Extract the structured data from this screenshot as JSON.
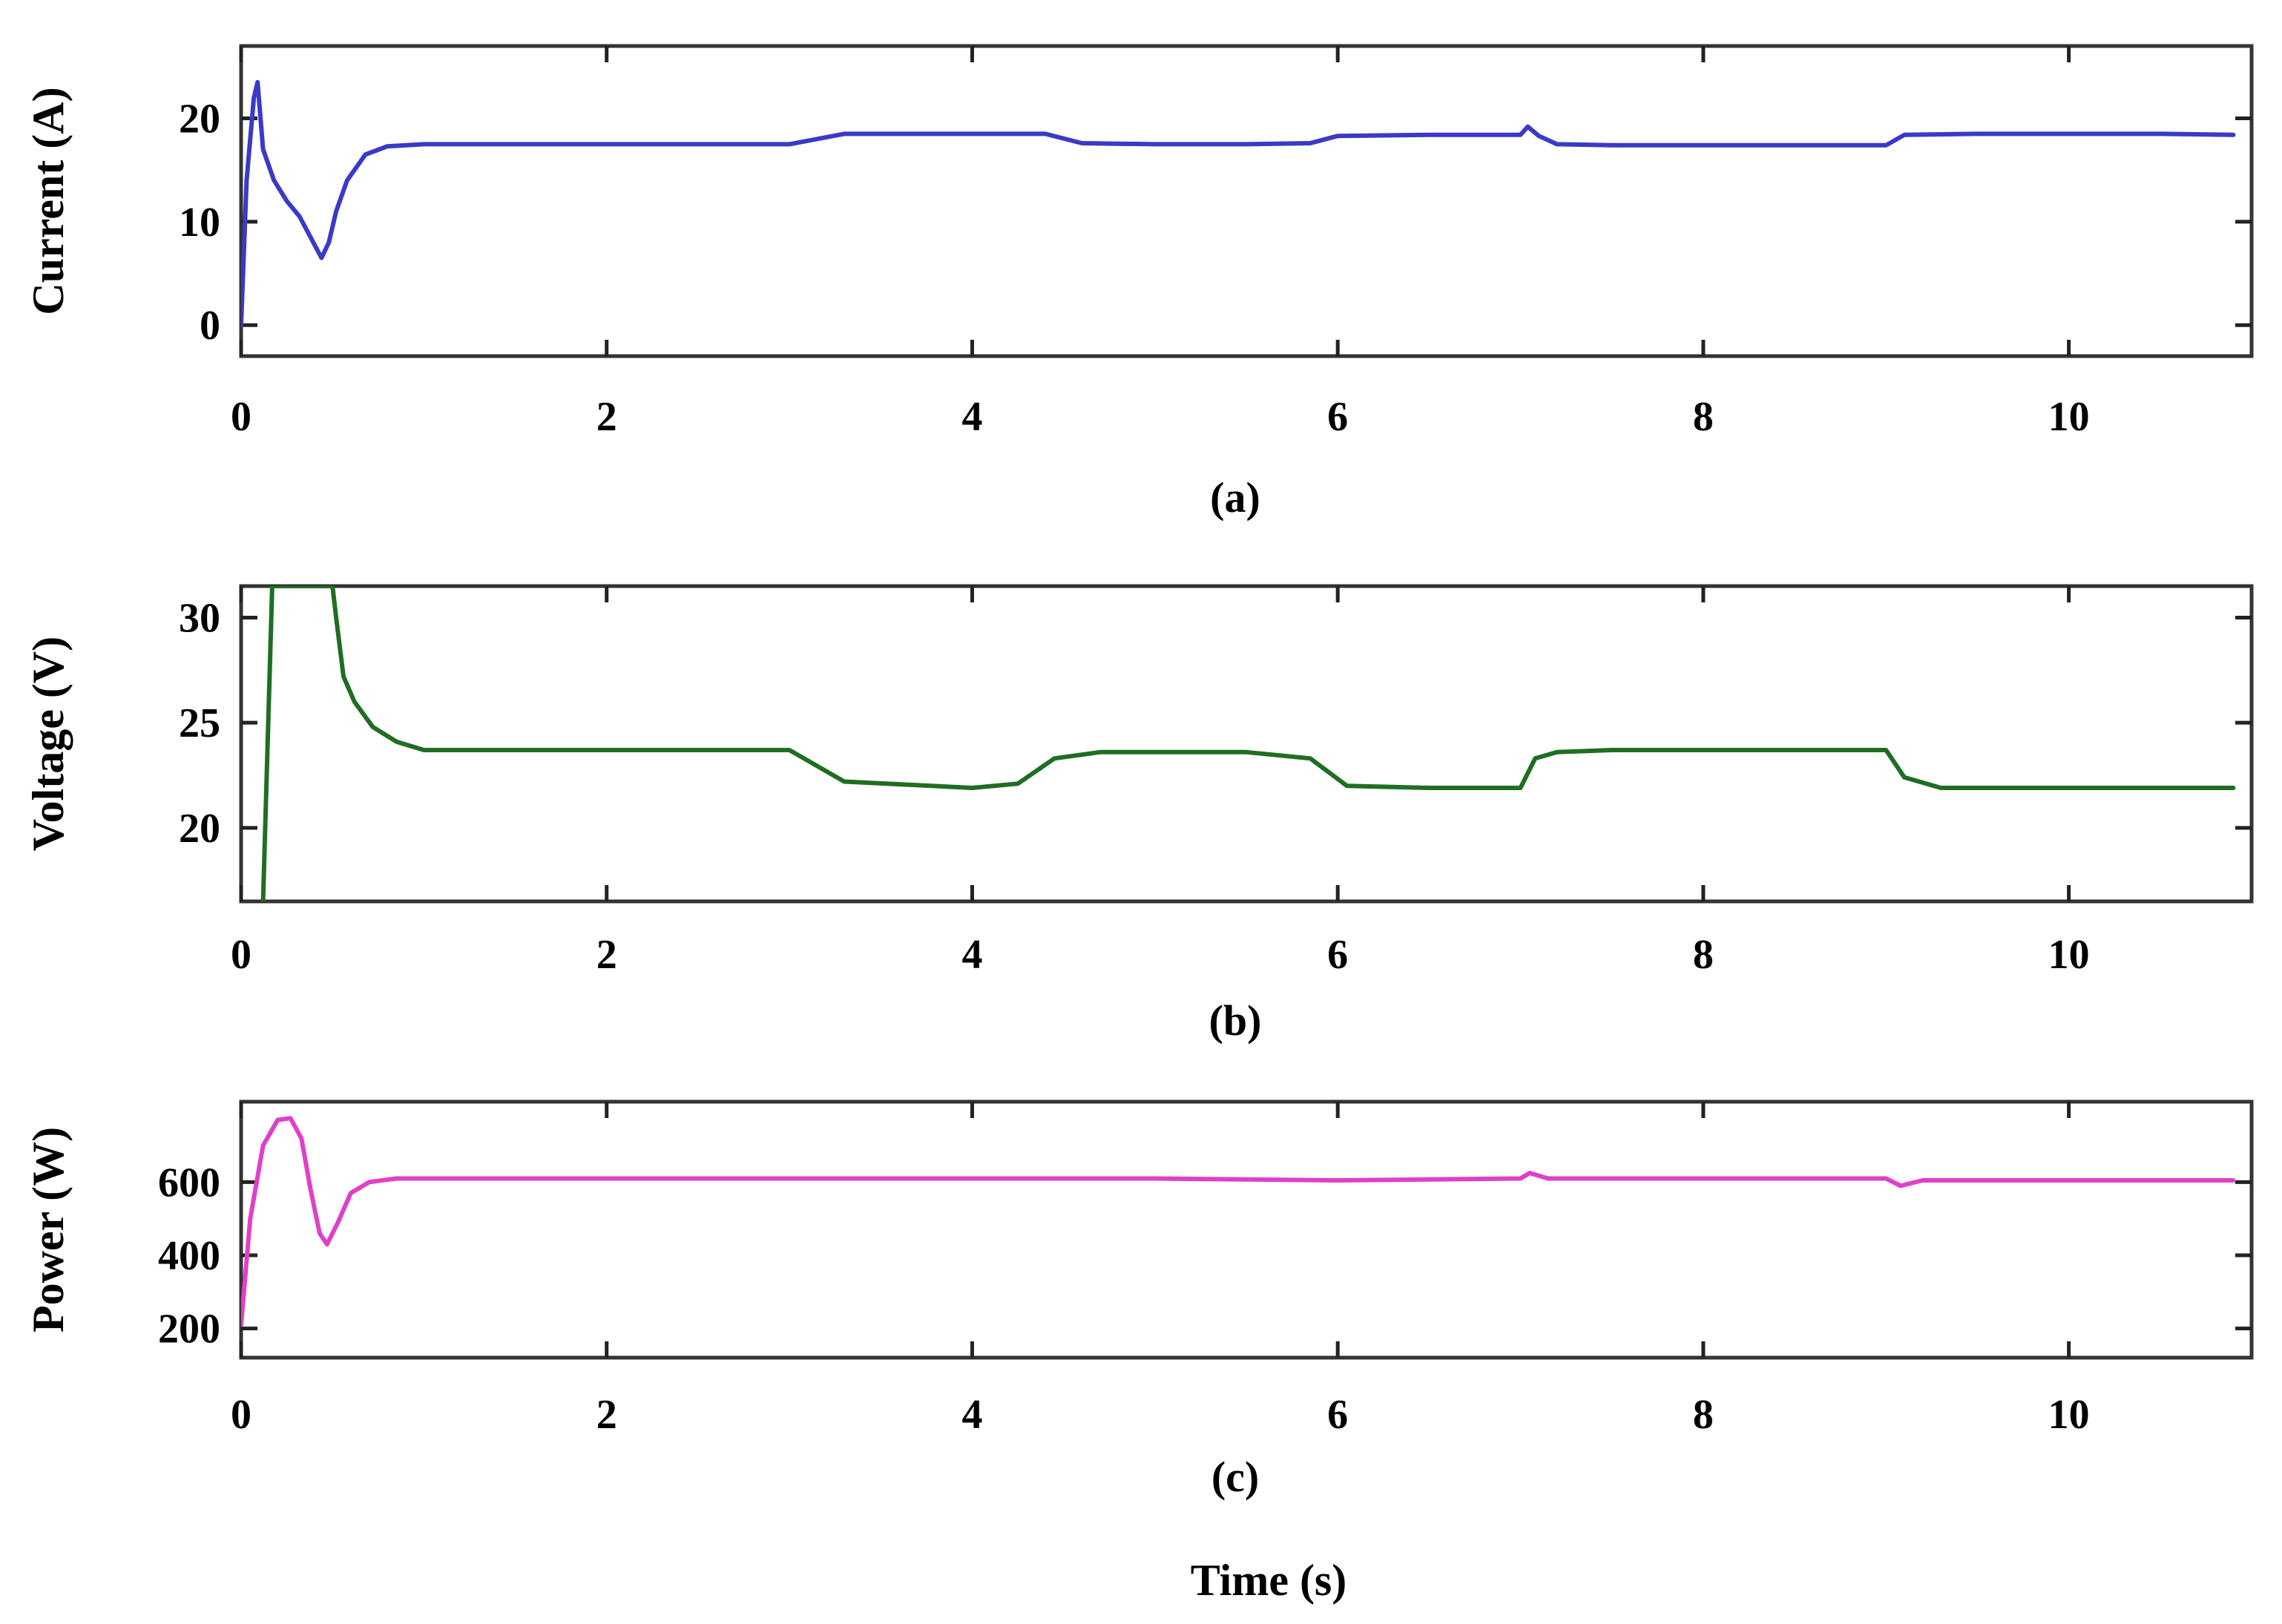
{
  "chart_data": [
    {
      "type": "line",
      "caption": "(a)",
      "ylabel": "Current (A)",
      "xlim": [
        0,
        11
      ],
      "ylim": [
        -3,
        27
      ],
      "xticks": [
        0,
        2,
        4,
        6,
        8,
        10
      ],
      "xtick_labels": [
        "0",
        "2",
        "4",
        "6",
        "8",
        "10"
      ],
      "yticks": [
        0,
        10,
        20
      ],
      "ytick_labels": [
        "0",
        "10",
        "20"
      ],
      "color": "#3a3ac8",
      "series": [
        {
          "x": [
            0,
            0.03,
            0.07,
            0.09,
            0.12,
            0.18,
            0.25,
            0.32,
            0.38,
            0.44,
            0.48,
            0.52,
            0.58,
            0.68,
            0.8,
            1.0,
            1.5,
            2.0,
            2.5,
            3.0,
            3.3,
            4.0,
            4.4,
            4.6,
            5.0,
            5.5,
            5.85,
            6.0,
            6.5,
            7.0,
            7.04,
            7.1,
            7.2,
            7.5,
            8.0,
            8.5,
            9.0,
            9.1,
            9.5,
            10.0,
            10.5,
            10.9
          ],
          "y": [
            0,
            14,
            22,
            23.5,
            17,
            14,
            12,
            10.5,
            8.5,
            6.5,
            8,
            11,
            14,
            16.5,
            17.3,
            17.5,
            17.5,
            17.5,
            17.5,
            17.5,
            18.5,
            18.5,
            18.5,
            17.6,
            17.5,
            17.5,
            17.6,
            18.3,
            18.4,
            18.4,
            19.2,
            18.3,
            17.5,
            17.4,
            17.4,
            17.4,
            17.4,
            18.4,
            18.5,
            18.5,
            18.5,
            18.4
          ]
        }
      ]
    },
    {
      "type": "line",
      "caption": "(b)",
      "ylabel": "Voltage (V)",
      "xlim": [
        0,
        11
      ],
      "ylim": [
        16.5,
        31.5
      ],
      "xticks": [
        0,
        2,
        4,
        6,
        8,
        10
      ],
      "xtick_labels": [
        "0",
        "2",
        "4",
        "6",
        "8",
        "10"
      ],
      "yticks": [
        20,
        25,
        30
      ],
      "ytick_labels": [
        "20",
        "25",
        "30"
      ],
      "color": "#1f6e22",
      "series": [
        {
          "x": [
            0.12,
            0.17,
            0.5,
            0.52,
            0.56,
            0.62,
            0.72,
            0.85,
            1.0,
            1.5,
            2.0,
            2.5,
            3.0,
            3.3,
            4.0,
            4.25,
            4.45,
            4.7,
            5.0,
            5.5,
            5.85,
            6.05,
            6.5,
            7.0,
            7.08,
            7.2,
            7.5,
            8.0,
            8.5,
            9.0,
            9.1,
            9.3,
            10.0,
            10.5,
            10.9
          ],
          "y": [
            16.5,
            31.5,
            31.5,
            30,
            27.2,
            26,
            24.8,
            24.1,
            23.7,
            23.7,
            23.7,
            23.7,
            23.7,
            22.2,
            21.9,
            22.1,
            23.3,
            23.6,
            23.6,
            23.6,
            23.3,
            22.0,
            21.9,
            21.9,
            23.3,
            23.6,
            23.7,
            23.7,
            23.7,
            23.7,
            22.4,
            21.9,
            21.9,
            21.9,
            21.9
          ]
        }
      ]
    },
    {
      "type": "line",
      "caption": "(c)",
      "ylabel": "Power (W)",
      "xlim": [
        0,
        11
      ],
      "ylim": [
        120,
        820
      ],
      "xticks": [
        0,
        2,
        4,
        6,
        8,
        10
      ],
      "xtick_labels": [
        "0",
        "2",
        "4",
        "6",
        "8",
        "10"
      ],
      "yticks": [
        200,
        400,
        600
      ],
      "ytick_labels": [
        "200",
        "400",
        "600"
      ],
      "color": "#e040c8",
      "series": [
        {
          "x": [
            0,
            0.05,
            0.12,
            0.2,
            0.27,
            0.33,
            0.38,
            0.43,
            0.47,
            0.53,
            0.6,
            0.7,
            0.85,
            1.0,
            2.0,
            3.0,
            4.0,
            5.0,
            6.0,
            7.0,
            7.05,
            7.15,
            8.0,
            9.0,
            9.08,
            9.2,
            10.0,
            10.9
          ],
          "y": [
            210,
            500,
            700,
            770,
            775,
            720,
            580,
            460,
            430,
            490,
            570,
            600,
            610,
            610,
            610,
            610,
            610,
            610,
            605,
            610,
            625,
            610,
            610,
            610,
            590,
            605,
            605,
            605
          ]
        }
      ]
    }
  ],
  "xlabel": "Time (s)"
}
